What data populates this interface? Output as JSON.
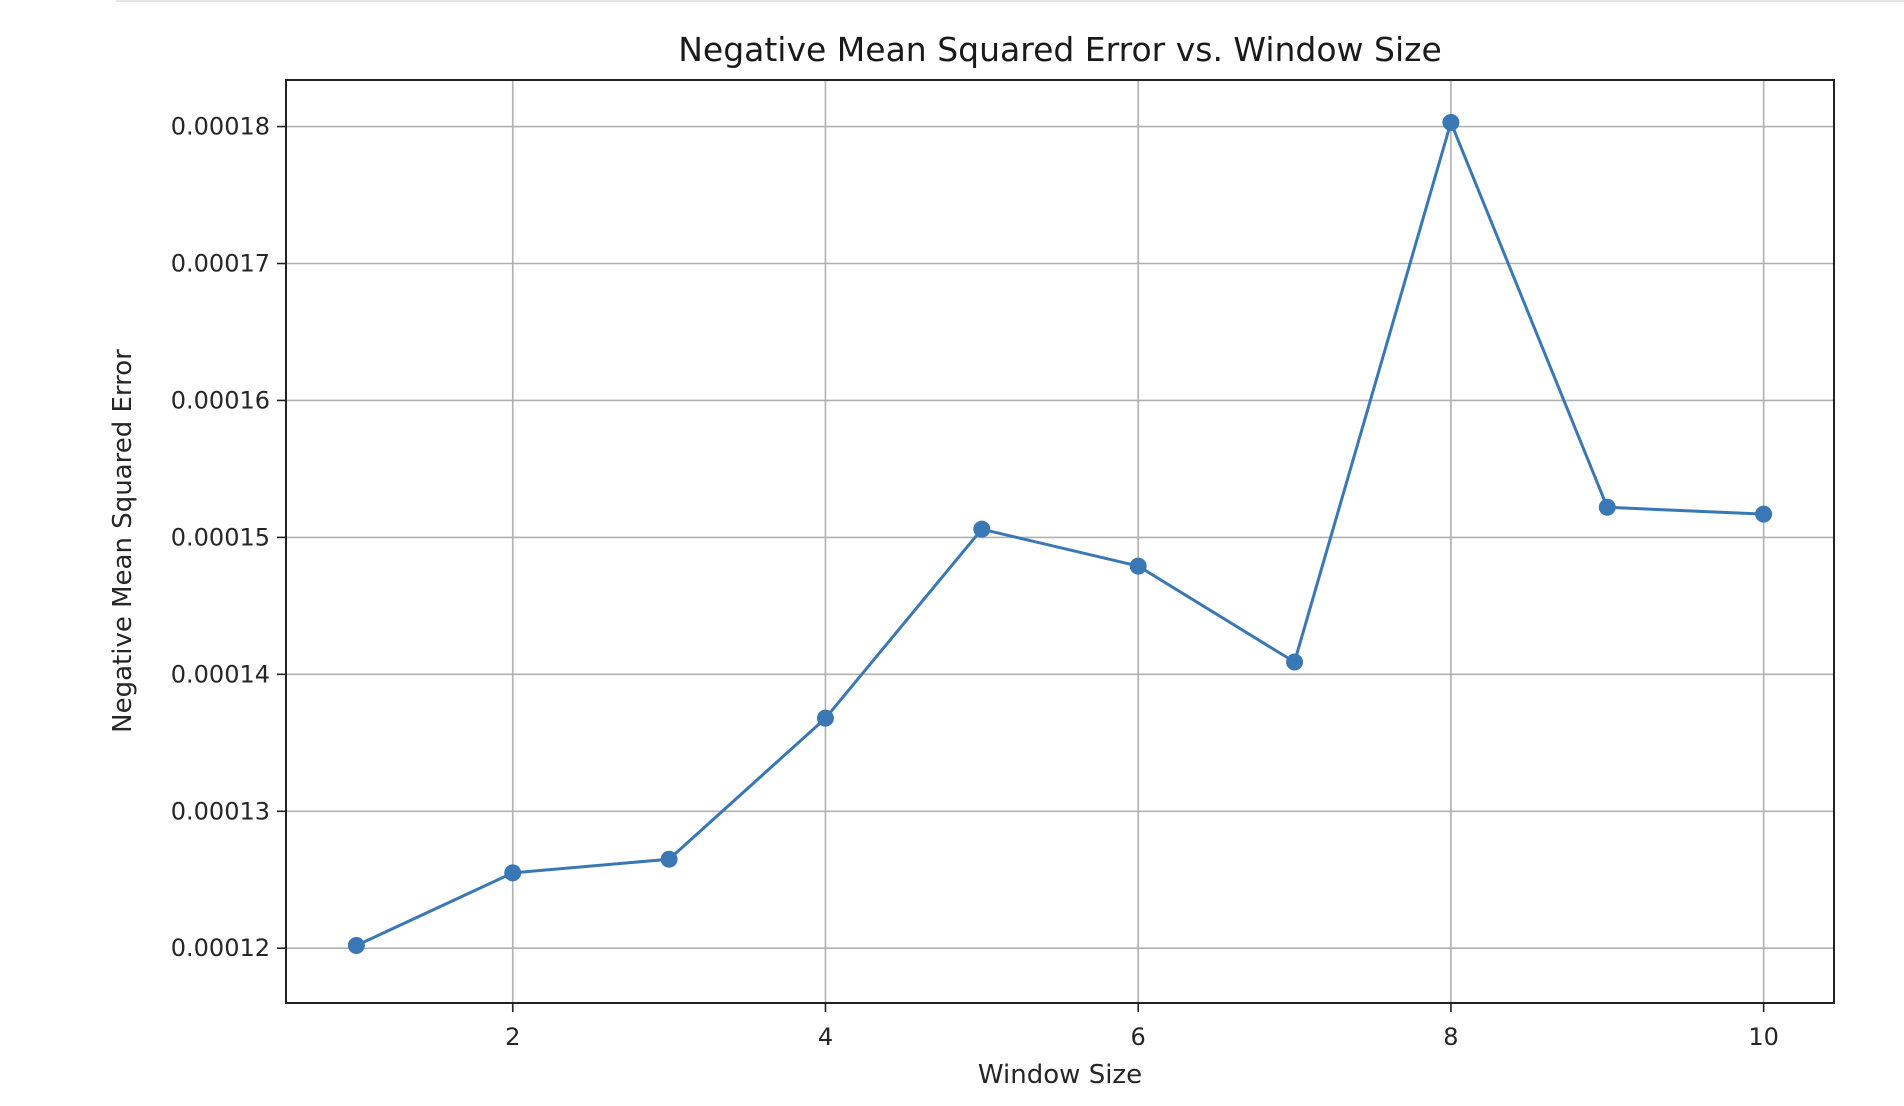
{
  "chart_data": {
    "type": "line",
    "title": "Negative Mean Squared Error vs. Window Size",
    "xlabel": "Window Size",
    "ylabel": "Negative Mean Squared Error",
    "x": [
      1,
      2,
      3,
      4,
      5,
      6,
      7,
      8,
      9,
      10
    ],
    "series": [
      {
        "values": [
          0.0001202,
          0.0001255,
          0.0001265,
          0.0001368,
          0.0001506,
          0.0001479,
          0.0001409,
          0.0001803,
          0.0001522,
          0.0001517
        ],
        "color": "#3a77b5",
        "marker": "circle"
      }
    ],
    "xlim": [
      0.55,
      10.45
    ],
    "ylim": [
      0.000116,
      0.0001834
    ],
    "xticks": [
      2,
      4,
      6,
      8,
      10
    ],
    "xtick_labels": [
      "2",
      "4",
      "6",
      "8",
      "10"
    ],
    "yticks": [
      0.00012,
      0.00013,
      0.00014,
      0.00015,
      0.00016,
      0.00017,
      0.00018
    ],
    "ytick_labels": [
      "0.00012",
      "0.00013",
      "0.00014",
      "0.00015",
      "0.00016",
      "0.00017",
      "0.00018"
    ],
    "grid": true,
    "legend": "none"
  }
}
